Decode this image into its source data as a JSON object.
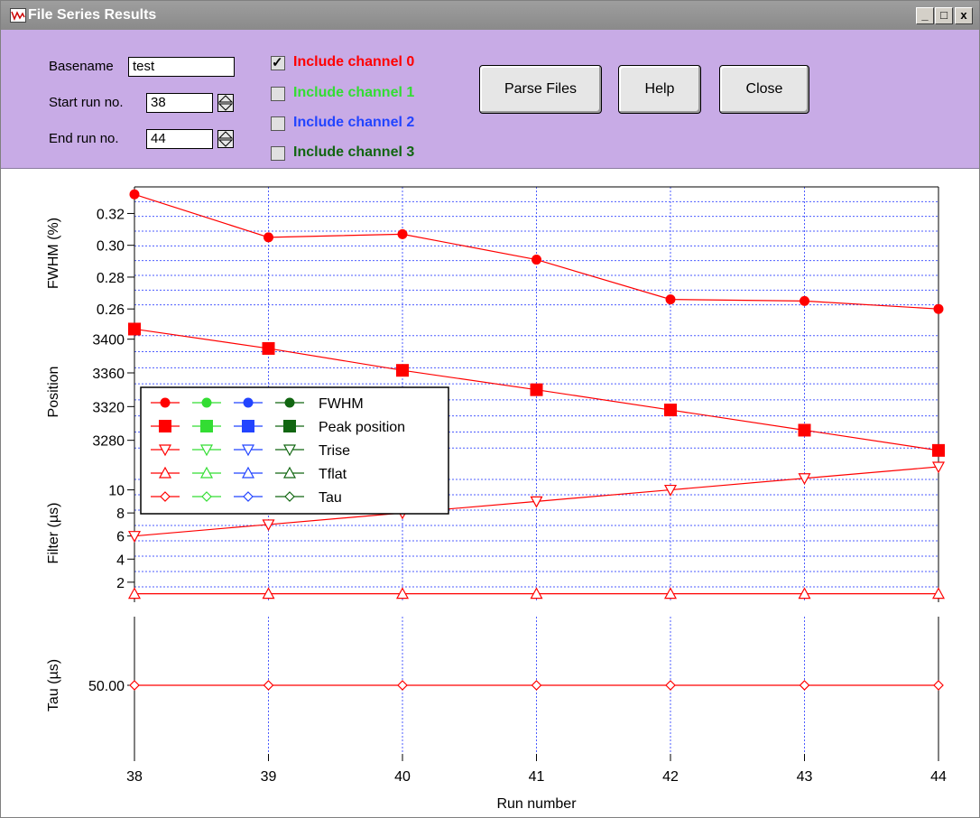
{
  "window": {
    "title": "File Series Results",
    "controls": {
      "minimize": "_",
      "maximize": "□",
      "close": "x"
    }
  },
  "panel": {
    "basename_label": "Basename",
    "basename_value": "test",
    "start_label": "Start run no.",
    "start_value": "38",
    "end_label": "End run no.",
    "end_value": "44",
    "channels": [
      {
        "label": "Include channel 0",
        "checked": true,
        "color": "#ff0000"
      },
      {
        "label": "Include channel 1",
        "checked": false,
        "color": "#33dd33"
      },
      {
        "label": "Include channel 2",
        "checked": false,
        "color": "#2244ff"
      },
      {
        "label": "Include channel 3",
        "checked": false,
        "color": "#116611"
      }
    ],
    "buttons": {
      "parse": "Parse Files",
      "help": "Help",
      "close": "Close"
    }
  },
  "chart_data": {
    "type": "line",
    "xlabel": "Run number",
    "x": [
      38,
      39,
      40,
      41,
      42,
      43,
      44
    ],
    "xticks": [
      "38",
      "39",
      "40",
      "41",
      "42",
      "43",
      "44"
    ],
    "grid": true,
    "panels": [
      {
        "ylabel": "FWHM (%)",
        "ylim": [
          0.255,
          0.335
        ],
        "yticks": [
          "0.26",
          "0.28",
          "0.30",
          "0.32"
        ],
        "series": [
          {
            "name": "FWHM",
            "marker": "circle",
            "color": "#ff0000",
            "values": [
              0.332,
              0.305,
              0.307,
              0.291,
              0.266,
              0.265,
              0.26
            ]
          }
        ]
      },
      {
        "ylabel": "Position",
        "ylim": [
          3255,
          3420
        ],
        "yticks": [
          "3280",
          "3320",
          "3360",
          "3400"
        ],
        "series": [
          {
            "name": "Peak position",
            "marker": "square",
            "color": "#ff0000",
            "values": [
              3412,
              3389,
              3363,
              3340,
              3316,
              3292,
              3268
            ]
          }
        ]
      },
      {
        "ylabel": "Filter (µs)",
        "ylim": [
          0.5,
          12
        ],
        "yticks": [
          "2",
          "4",
          "6",
          "8",
          "10"
        ],
        "series": [
          {
            "name": "Trise",
            "marker": "triangle-down",
            "color": "#ff0000",
            "values": [
              6,
              7,
              8,
              9,
              10,
              11,
              12
            ]
          },
          {
            "name": "Tflat",
            "marker": "triangle-up",
            "color": "#ff0000",
            "values": [
              1,
              1,
              1,
              1,
              1,
              1,
              1
            ]
          }
        ]
      },
      {
        "ylabel": "Tau (µs)",
        "ylim": [
          49,
          51
        ],
        "yticks": [
          "50.00"
        ],
        "series": [
          {
            "name": "Tau",
            "marker": "diamond",
            "color": "#ff0000",
            "values": [
              50,
              50,
              50,
              50,
              50,
              50,
              50
            ]
          }
        ]
      }
    ],
    "legend": {
      "placement": "left",
      "entries": [
        "FWHM",
        "Peak position",
        "Trise",
        "Tflat",
        "Tau"
      ],
      "channel_colors": [
        "#ff0000",
        "#33dd33",
        "#2244ff",
        "#116611"
      ],
      "markers": [
        "circle",
        "square",
        "triangle-down",
        "triangle-up",
        "diamond"
      ]
    }
  }
}
